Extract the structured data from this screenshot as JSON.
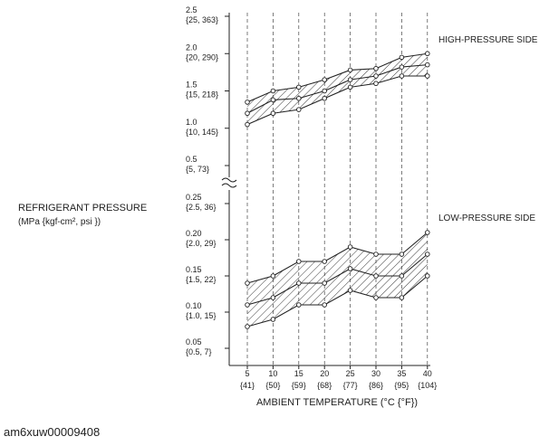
{
  "chart_data": {
    "type": "area",
    "x_values": [
      5,
      10,
      15,
      20,
      25,
      30,
      35,
      40
    ],
    "x_ticks": [
      {
        "c": "5",
        "f": "{41}"
      },
      {
        "c": "10",
        "f": "{50}"
      },
      {
        "c": "15",
        "f": "{59}"
      },
      {
        "c": "20",
        "f": "{68}"
      },
      {
        "c": "25",
        "f": "{77}"
      },
      {
        "c": "30",
        "f": "{86}"
      },
      {
        "c": "35",
        "f": "{95}"
      },
      {
        "c": "40",
        "f": "{104}"
      }
    ],
    "xlabel": "AMBIENT TEMPERATURE  (°C {°F})",
    "ylabel_line1": "REFRIGERANT PRESSURE",
    "ylabel_line2": "(MPa {kgf-cm², psi })",
    "y_ticks_high": [
      {
        "value": 2.5,
        "mpa": "2.5",
        "alt": "{25, 363}"
      },
      {
        "value": 2.0,
        "mpa": "2.0",
        "alt": "{20, 290}"
      },
      {
        "value": 1.5,
        "mpa": "1.5",
        "alt": "{15, 218}"
      },
      {
        "value": 1.0,
        "mpa": "1.0",
        "alt": "{10, 145}"
      },
      {
        "value": 0.5,
        "mpa": "0.5",
        "alt": "{5, 73}"
      }
    ],
    "y_ticks_low": [
      {
        "value": 0.25,
        "mpa": "0.25",
        "alt": "{2.5, 36}"
      },
      {
        "value": 0.2,
        "mpa": "0.20",
        "alt": "{2.0, 29}"
      },
      {
        "value": 0.15,
        "mpa": "0.15",
        "alt": "{1.5, 22}"
      },
      {
        "value": 0.1,
        "mpa": "0.10",
        "alt": "{1.0, 15}"
      },
      {
        "value": 0.05,
        "mpa": "0.05",
        "alt": "{0.5, 7}"
      }
    ],
    "axis_break": true,
    "high_pressure": {
      "label": "HIGH-PRESSURE SIDE",
      "upper": [
        1.35,
        1.5,
        1.55,
        1.65,
        1.78,
        1.8,
        1.95,
        2.0
      ],
      "middle": [
        1.2,
        1.38,
        1.4,
        1.5,
        1.65,
        1.7,
        1.82,
        1.85
      ],
      "lower": [
        1.05,
        1.2,
        1.25,
        1.4,
        1.55,
        1.6,
        1.7,
        1.7
      ]
    },
    "low_pressure": {
      "label": "LOW-PRESSURE SIDE",
      "upper": [
        0.14,
        0.15,
        0.17,
        0.17,
        0.19,
        0.18,
        0.18,
        0.21
      ],
      "middle": [
        0.11,
        0.12,
        0.14,
        0.14,
        0.16,
        0.15,
        0.15,
        0.18
      ],
      "lower": [
        0.08,
        0.09,
        0.11,
        0.11,
        0.13,
        0.12,
        0.12,
        0.15
      ]
    },
    "hatching": "diagonal"
  },
  "caption": "am6xuw00009408"
}
